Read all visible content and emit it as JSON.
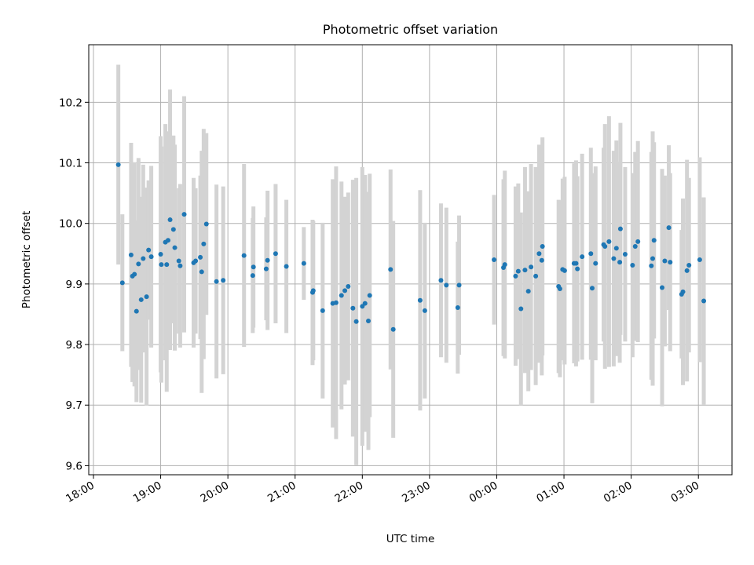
{
  "chart_data": {
    "type": "scatter",
    "title": "Photometric offset variation",
    "xlabel": "UTC time",
    "ylabel": "Photometric offset",
    "ylim": [
      9.585,
      10.295
    ],
    "xlim_hours": [
      17.93,
      27.5
    ],
    "grid": true,
    "legend": "none",
    "x_tick_labels": [
      "18:00",
      "19:00",
      "20:00",
      "21:00",
      "22:00",
      "23:00",
      "00:00",
      "01:00",
      "02:00",
      "03:00"
    ],
    "x_tick_hours": [
      18,
      19,
      20,
      21,
      22,
      23,
      24,
      25,
      26,
      27
    ],
    "y_tick_labels": [
      "9.6",
      "9.7",
      "9.8",
      "9.9",
      "10.0",
      "10.1",
      "10.2"
    ],
    "y_ticks": [
      9.6,
      9.7,
      9.8,
      9.9,
      10.0,
      10.1,
      10.2
    ],
    "colors": {
      "marker": "#1f77b4",
      "errorbar": "#d3d3d3",
      "grid": "#b0b0b0"
    },
    "series": [
      {
        "x_hours": [
          18.37,
          18.43,
          18.56,
          18.58,
          18.61,
          18.64,
          18.67,
          18.71,
          18.74,
          18.79,
          18.82,
          18.86,
          19.0,
          19.01,
          19.07,
          19.09,
          19.11,
          19.14,
          19.19,
          19.21,
          19.27,
          19.29,
          19.35,
          19.49,
          19.52,
          19.59,
          19.61,
          19.64,
          19.68,
          19.83,
          19.93,
          20.24,
          20.37,
          20.38,
          20.57,
          20.59,
          20.71,
          20.87,
          21.13,
          21.26,
          21.27,
          21.41,
          21.56,
          21.61,
          21.69,
          21.74,
          21.79,
          21.86,
          21.91,
          22.0,
          22.04,
          22.09,
          22.11,
          22.42,
          22.46,
          22.86,
          22.93,
          23.17,
          23.25,
          23.42,
          23.44,
          23.96,
          24.1,
          24.12,
          24.28,
          24.32,
          24.36,
          24.42,
          24.47,
          24.51,
          24.58,
          24.63,
          24.67,
          24.68,
          24.92,
          24.94,
          24.98,
          25.01,
          25.15,
          25.18,
          25.2,
          25.27,
          25.4,
          25.42,
          25.47,
          25.59,
          25.61,
          25.67,
          25.74,
          25.78,
          25.83,
          25.84,
          25.91,
          26.02,
          26.06,
          26.1,
          26.3,
          26.32,
          26.34,
          26.46,
          26.5,
          26.56,
          26.58,
          26.75,
          26.77,
          26.83,
          26.86,
          27.02,
          27.08
        ],
        "y": [
          10.097,
          9.902,
          9.948,
          9.913,
          9.916,
          9.855,
          9.933,
          9.874,
          9.942,
          9.879,
          9.956,
          9.945,
          9.949,
          9.932,
          9.969,
          9.932,
          9.972,
          10.006,
          9.99,
          9.96,
          9.938,
          9.93,
          10.015,
          9.935,
          9.938,
          9.944,
          9.92,
          9.966,
          9.999,
          9.904,
          9.906,
          9.947,
          9.914,
          9.928,
          9.925,
          9.939,
          9.95,
          9.929,
          9.934,
          9.886,
          9.889,
          9.856,
          9.868,
          9.869,
          9.881,
          9.889,
          9.896,
          9.86,
          9.838,
          9.863,
          9.868,
          9.839,
          9.881,
          9.924,
          9.825,
          9.873,
          9.856,
          9.906,
          9.898,
          9.861,
          9.898,
          9.94,
          9.927,
          9.932,
          9.913,
          9.921,
          9.859,
          9.923,
          9.888,
          9.928,
          9.913,
          9.95,
          9.939,
          9.962,
          9.896,
          9.892,
          9.924,
          9.922,
          9.934,
          9.934,
          9.925,
          9.945,
          9.95,
          9.893,
          9.934,
          9.965,
          9.962,
          9.97,
          9.942,
          9.959,
          9.936,
          9.991,
          9.949,
          9.931,
          9.962,
          9.97,
          9.93,
          9.942,
          9.972,
          9.894,
          9.938,
          9.993,
          9.936,
          9.883,
          9.887,
          9.922,
          9.931,
          9.94,
          9.872
        ],
        "err": [
          0.165,
          0.113,
          0.185,
          0.175,
          0.185,
          0.15,
          0.175,
          0.17,
          0.155,
          0.18,
          0.115,
          0.15,
          0.195,
          0.195,
          0.195,
          0.21,
          0.18,
          0.215,
          0.155,
          0.17,
          0.12,
          0.135,
          0.195,
          0.14,
          0.12,
          0.135,
          0.2,
          0.19,
          0.15,
          0.16,
          0.155,
          0.151,
          0.095,
          0.1,
          0.085,
          0.115,
          0.115,
          0.11,
          0.06,
          0.12,
          0.115,
          0.145,
          0.205,
          0.225,
          0.188,
          0.155,
          0.155,
          0.212,
          0.237,
          0.23,
          0.212,
          0.213,
          0.201,
          0.165,
          0.179,
          0.182,
          0.145,
          0.127,
          0.128,
          0.109,
          0.115,
          0.107,
          0.146,
          0.155,
          0.148,
          0.145,
          0.159,
          0.17,
          0.165,
          0.17,
          0.18,
          0.18,
          0.19,
          0.18,
          0.143,
          0.146,
          0.15,
          0.155,
          0.165,
          0.17,
          0.153,
          0.17,
          0.175,
          0.19,
          0.16,
          0.16,
          0.202,
          0.207,
          0.178,
          0.178,
          0.166,
          0.175,
          0.144,
          0.152,
          0.156,
          0.166,
          0.188,
          0.21,
          0.162,
          0.196,
          0.141,
          0.136,
          0.147,
          0.106,
          0.154,
          0.183,
          0.144,
          0.169,
          0.171
        ]
      }
    ]
  }
}
